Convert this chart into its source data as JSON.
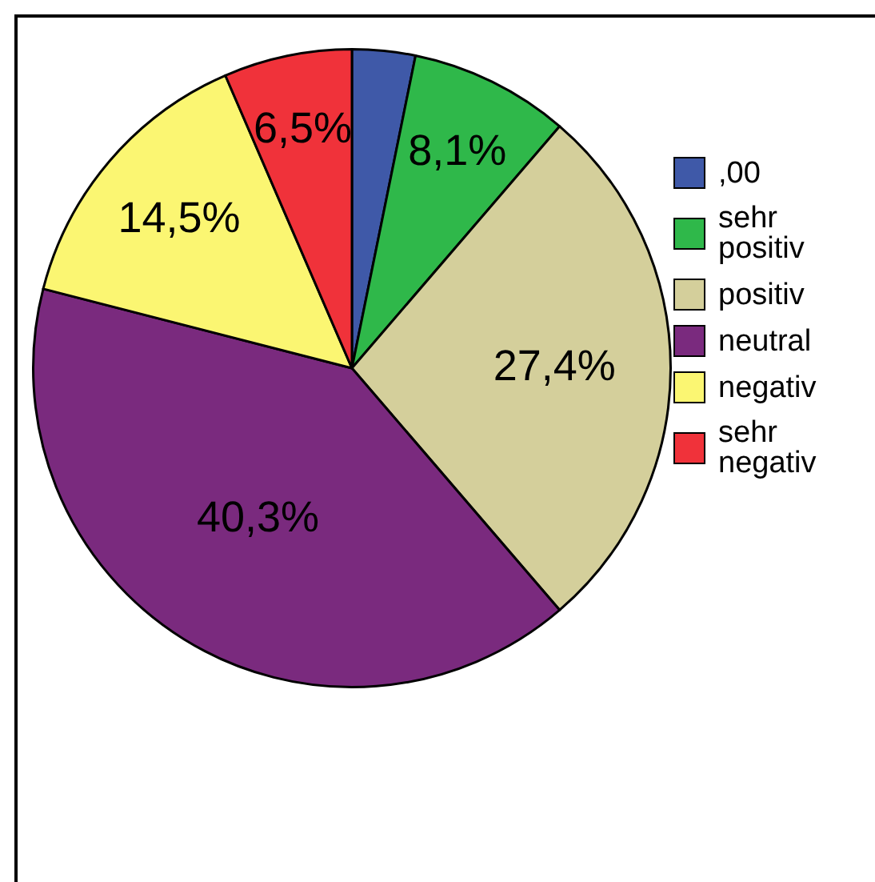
{
  "chart_data": {
    "type": "pie",
    "categories": [
      ",00",
      "sehr positiv",
      "positiv",
      "neutral",
      "negativ",
      "sehr negativ"
    ],
    "values": [
      3.2,
      8.1,
      27.4,
      40.3,
      14.5,
      6.5
    ],
    "colors": [
      "#3f59a8",
      "#2fb84a",
      "#d4cf9b",
      "#7a2a7e",
      "#fbf672",
      "#f0323a"
    ],
    "value_labels": [
      null,
      "8,1%",
      "27,4%",
      "40,3%",
      "14,5%",
      "6,5%"
    ],
    "legend": "right"
  }
}
